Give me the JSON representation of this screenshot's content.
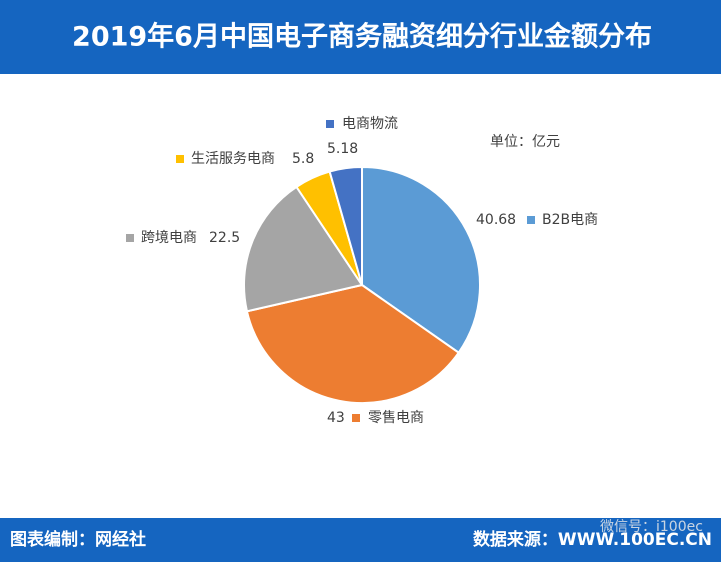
{
  "chart_data": {
    "type": "pie",
    "title": "2019年6月中国电子商务融资细分行业金额分布",
    "unit_label": "单位：亿元",
    "categories": [
      "B2B电商",
      "零售电商",
      "跨境电商",
      "生活服务电商",
      "电商物流"
    ],
    "values": [
      40.68,
      43,
      22.5,
      5.8,
      5.18
    ],
    "colors": [
      "#5b9bd5",
      "#ed7d31",
      "#a5a5a5",
      "#ffc000",
      "#4472c4"
    ],
    "footer_left": "图表编制：网经社",
    "footer_right": "数据来源：WWW.100EC.CN",
    "watermark": "微信号：i100ec"
  }
}
